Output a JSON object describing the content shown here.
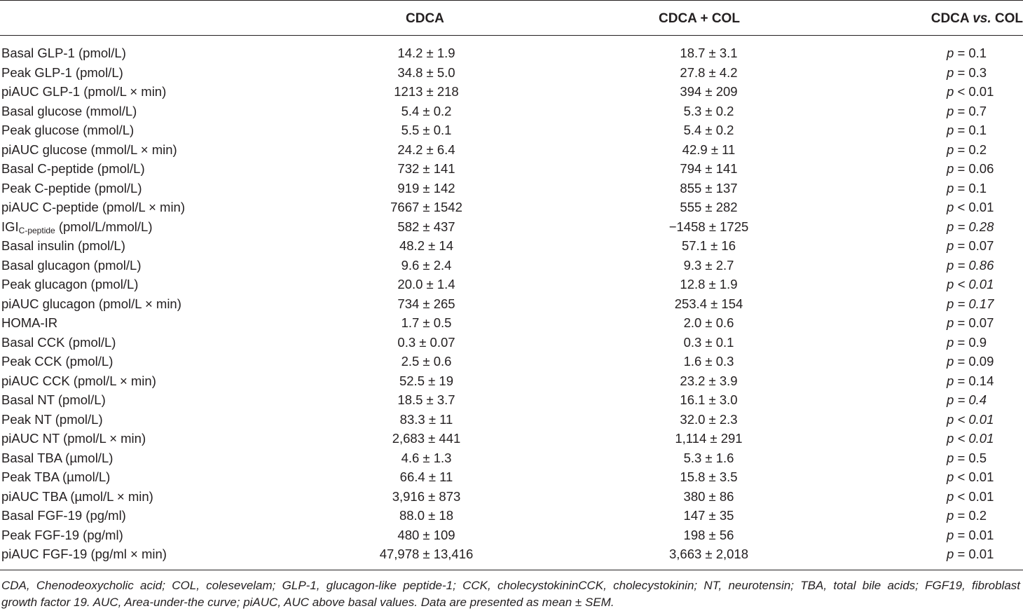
{
  "header": {
    "col1": "CDCA",
    "col2": "CDCA + COL",
    "col3_prefix": "CDCA ",
    "col3_vs": "vs.",
    "col3_suffix": " COL"
  },
  "rows": [
    {
      "label": "Basal GLP-1 (pmol/L)",
      "cdca": "14.2 ± 1.9",
      "col": "18.7 ± 3.1",
      "p": "= 0.1"
    },
    {
      "label": "Peak GLP-1 (pmol/L)",
      "cdca": "34.8 ± 5.0",
      "col": "27.8 ± 4.2",
      "p": "= 0.3"
    },
    {
      "label": "piAUC GLP-1 (pmol/L × min)",
      "cdca": "1213 ± 218",
      "col": "394 ± 209",
      "p": "< 0.01"
    },
    {
      "label": "Basal glucose (mmol/L)",
      "cdca": "5.4 ± 0.2",
      "col": "5.3 ± 0.2",
      "p": "= 0.7"
    },
    {
      "label": "Peak glucose (mmol/L)",
      "cdca": "5.5 ± 0.1",
      "col": "5.4 ± 0.2",
      "p": "= 0.1"
    },
    {
      "label": "piAUC glucose (mmol/L × min)",
      "cdca": "24.2 ± 6.4",
      "col": "42.9 ± 11",
      "p": "= 0.2"
    },
    {
      "label": "Basal C-peptide (pmol/L)",
      "cdca": "732 ± 141",
      "col": "794 ± 141",
      "p": "= 0.06"
    },
    {
      "label": "Peak C-peptide (pmol/L)",
      "cdca": "919 ± 142",
      "col": "855 ± 137",
      "p": "= 0.1"
    },
    {
      "label": "piAUC C-peptide (pmol/L × min)",
      "cdca": "7667 ± 1542",
      "col": "555 ± 282",
      "p": "< 0.01"
    },
    {
      "label_main": "IGI",
      "label_sub": "C-peptide",
      "label_rest": " (pmol/L/mmol/L)",
      "cdca": "582 ± 437",
      "col": "−1458 ± 1725",
      "p": "= 0.28",
      "italic": true
    },
    {
      "label": "Basal insulin (pmol/L)",
      "cdca": "48.2 ± 14",
      "col": "57.1 ± 16",
      "p": "= 0.07"
    },
    {
      "label": "Basal glucagon (pmol/L)",
      "cdca": "9.6 ± 2.4",
      "col": "9.3 ± 2.7",
      "p": "= 0.86",
      "italic": true
    },
    {
      "label": "Peak glucagon (pmol/L)",
      "cdca": "20.0 ± 1.4",
      "col": "12.8 ± 1.9",
      "p": "< 0.01",
      "italic": true
    },
    {
      "label": "piAUC glucagon (pmol/L × min)",
      "cdca": "734 ± 265",
      "col": "253.4 ± 154",
      "p": "= 0.17",
      "italic": true
    },
    {
      "label": "HOMA-IR",
      "cdca": "1.7 ± 0.5",
      "col": "2.0 ± 0.6",
      "p": "= 0.07"
    },
    {
      "label": "Basal CCK (pmol/L)",
      "cdca": "0.3 ± 0.07",
      "col": "0.3 ± 0.1",
      "p": "= 0.9"
    },
    {
      "label": "Peak CCK (pmol/L)",
      "cdca": "2.5 ± 0.6",
      "col": "1.6 ± 0.3",
      "p": "= 0.09"
    },
    {
      "label": "piAUC CCK (pmol/L × min)",
      "cdca": "52.5 ± 19",
      "col": "23.2 ± 3.9",
      "p": "= 0.14"
    },
    {
      "label": "Basal NT (pmol/L)",
      "cdca": "18.5 ± 3.7",
      "col": "16.1 ± 3.0",
      "p": "= 0.4",
      "italic": true
    },
    {
      "label": "Peak NT (pmol/L)",
      "cdca": "83.3 ± 11",
      "col": "32.0 ± 2.3",
      "p": "< 0.01",
      "italic": true
    },
    {
      "label": "piAUC NT (pmol/L × min)",
      "cdca": "2,683 ± 441",
      "col": "1,114 ± 291",
      "p": "< 0.01",
      "italic": true
    },
    {
      "label": "Basal TBA (µmol/L)",
      "cdca": "4.6 ± 1.3",
      "col": "5.3 ± 1.6",
      "p": "= 0.5"
    },
    {
      "label": "Peak TBA (µmol/L)",
      "cdca": "66.4 ± 11",
      "col": "15.8 ± 3.5",
      "p": "< 0.01"
    },
    {
      "label": "piAUC TBA (µmol/L × min)",
      "cdca": "3,916 ± 873",
      "col": "380 ± 86",
      "p": "< 0.01"
    },
    {
      "label": "Basal FGF-19 (pg/ml)",
      "cdca": "88.0 ± 18",
      "col": "147 ± 35",
      "p": "= 0.2"
    },
    {
      "label": "Peak FGF-19 (pg/ml)",
      "cdca": "480 ± 109",
      "col": "198 ± 56",
      "p": "= 0.01"
    },
    {
      "label": "piAUC FGF-19 (pg/ml × min)",
      "cdca": "47,978 ± 13,416",
      "col": "3,663 ± 2,018",
      "p": "= 0.01"
    }
  ],
  "p_letter": "p",
  "footnote": {
    "line1": "CDA, Chenodeoxycholic acid; COL, colesevelam; GLP-1, glucagon-like peptide-1; CCK, cholecystokininCCK, cholecystokinin; NT, neurotensin; TBA, total bile acids; FGF19, fibroblast",
    "line2": "growth factor 19. AUC, Area-under-the curve; piAUC, AUC above basal values. Data are presented as mean ± SEM."
  }
}
